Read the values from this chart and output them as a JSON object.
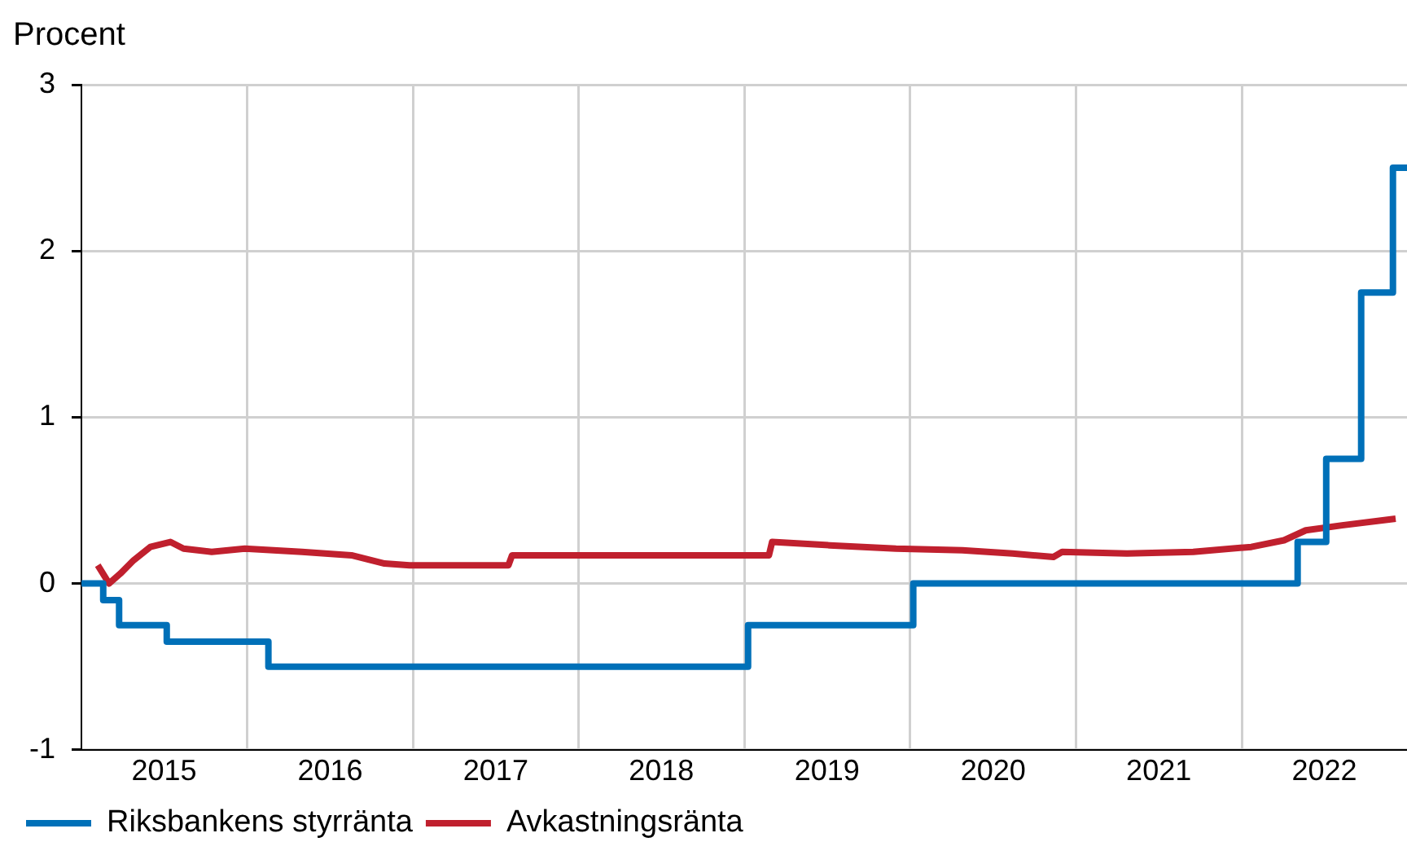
{
  "chart_data": {
    "type": "line",
    "ylabel": "Procent",
    "xlim": [
      "2015-01-01",
      "2022-12-31"
    ],
    "ylim": [
      -1,
      3
    ],
    "yticks": [
      -1,
      0,
      1,
      2,
      3
    ],
    "xticks": [
      {
        "value": "2015-07-02",
        "label": "2015"
      },
      {
        "value": "2016-01-01",
        "label": null
      },
      {
        "value": "2016-07-02",
        "label": "2016"
      },
      {
        "value": "2017-01-01",
        "label": null
      },
      {
        "value": "2017-07-02",
        "label": "2017"
      },
      {
        "value": "2018-01-01",
        "label": null
      },
      {
        "value": "2018-07-02",
        "label": "2018"
      },
      {
        "value": "2019-01-01",
        "label": null
      },
      {
        "value": "2019-07-02",
        "label": "2019"
      },
      {
        "value": "2020-01-01",
        "label": null
      },
      {
        "value": "2020-07-02",
        "label": "2020"
      },
      {
        "value": "2021-01-01",
        "label": null
      },
      {
        "value": "2021-07-02",
        "label": "2021"
      },
      {
        "value": "2022-01-01",
        "label": null
      },
      {
        "value": "2022-07-02",
        "label": "2022"
      }
    ],
    "grid": true,
    "legend": "bottom left",
    "marker": "none",
    "line_style": "solid",
    "series": [
      {
        "name": "Riksbankens styrränta",
        "type": "step",
        "color": "#0070b8",
        "x": [
          "2015-01-01",
          "2015-02-18",
          "2015-03-25",
          "2015-07-08",
          "2016-02-17",
          "2019-01-09",
          "2020-01-08",
          "2022-05-04",
          "2022-07-06",
          "2022-09-21",
          "2022-11-30",
          "2022-12-31"
        ],
        "values": [
          0,
          -0.1,
          -0.25,
          -0.35,
          -0.5,
          -0.25,
          0,
          0.25,
          0.75,
          1.75,
          2.5,
          2.5
        ]
      },
      {
        "name": "Avkastningsränta",
        "type": "line",
        "color": "#c0202e",
        "x": [
          "2015-02-06",
          "2015-03-03",
          "2015-03-28",
          "2015-04-26",
          "2015-06-02",
          "2015-07-16",
          "2015-08-14",
          "2015-10-15",
          "2015-12-27",
          "2016-05-01",
          "2016-08-18",
          "2016-10-30",
          "2016-12-24",
          "2017-07-30",
          "2017-08-07",
          "2018-04-30",
          "2019-02-24",
          "2019-03-03",
          "2019-07-08",
          "2019-12-01",
          "2020-04-25",
          "2020-08-14",
          "2020-11-12",
          "2020-12-01",
          "2021-04-23",
          "2021-09-16",
          "2022-01-22",
          "2022-04-04",
          "2022-05-22",
          "2022-08-10",
          "2022-12-06"
        ],
        "values": [
          0.11,
          0,
          0.06,
          0.14,
          0.22,
          0.25,
          0.21,
          0.19,
          0.21,
          0.19,
          0.17,
          0.12,
          0.11,
          0.11,
          0.17,
          0.17,
          0.17,
          0.25,
          0.23,
          0.21,
          0.2,
          0.18,
          0.16,
          0.19,
          0.18,
          0.19,
          0.22,
          0.26,
          0.32,
          0.35,
          0.39
        ]
      }
    ]
  }
}
